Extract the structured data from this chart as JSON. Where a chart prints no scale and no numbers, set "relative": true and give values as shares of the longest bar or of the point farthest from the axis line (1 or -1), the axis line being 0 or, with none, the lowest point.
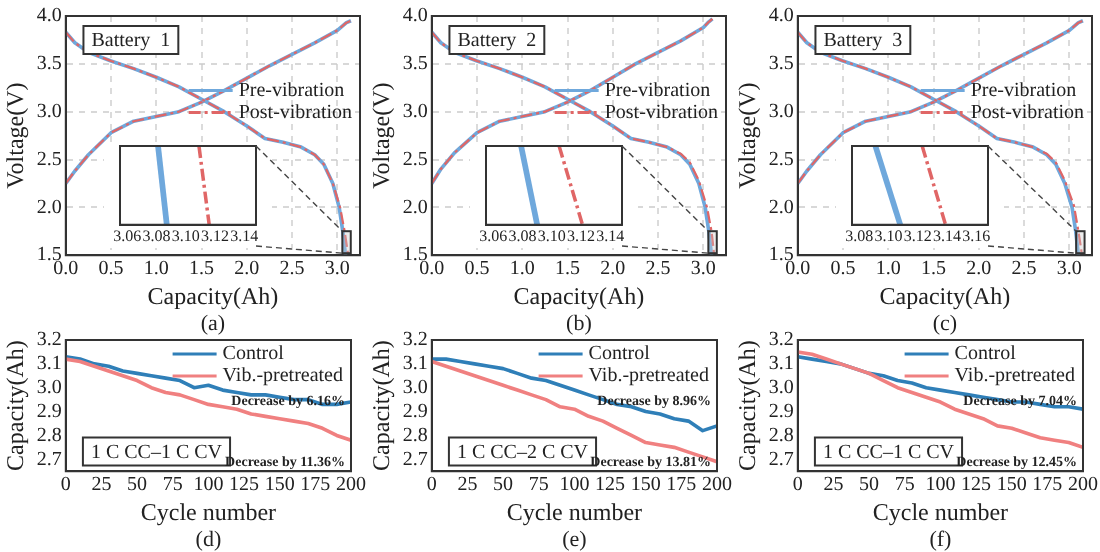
{
  "chart_data": [
    {
      "type": "line",
      "xlabel": "Capacity(Ah)",
      "ylabel": "Voltage(V)",
      "annotations": [
        "Battery  1",
        "(a)"
      ],
      "grid": true,
      "legend": "right",
      "marker": "none",
      "xlim": [
        0,
        3.25
      ],
      "xticks": [
        {
          "value": 0,
          "label": "0.0"
        },
        0.5,
        {
          "value": 1,
          "label": "1.0"
        },
        1.5,
        {
          "value": 2,
          "label": "2.0"
        },
        2.5,
        {
          "value": 3,
          "label": "3.0"
        }
      ],
      "ylim": [
        1.5,
        4
      ],
      "yticks": [
        1.5,
        {
          "value": 2,
          "label": "2.0"
        },
        2.5,
        {
          "value": 3,
          "label": "3.0"
        },
        3.5,
        {
          "value": 4,
          "label": "4.0"
        }
      ],
      "series": [
        {
          "name": "Pre-vibration",
          "color": "#6fa8dc",
          "x": [
            0,
            0.1,
            0.25,
            0.5,
            0.75,
            1,
            1.25,
            1.5,
            1.75,
            2,
            2.25,
            2.5,
            2.75,
            3,
            3.1,
            3.15
          ],
          "values": [
            2.25,
            2.38,
            2.55,
            2.78,
            2.9,
            2.95,
            3,
            3.1,
            3.22,
            3.35,
            3.48,
            3.6,
            3.72,
            3.85,
            3.93,
            3.95
          ]
        },
        {
          "name": "Post-vibration",
          "color": "#e06666",
          "line_style": "dashed",
          "x": [
            0,
            0.1,
            0.25,
            0.5,
            0.75,
            1,
            1.25,
            1.5,
            1.75,
            2,
            2.25,
            2.5,
            2.75,
            3,
            3.1,
            3.15
          ],
          "values": [
            2.25,
            2.38,
            2.55,
            2.78,
            2.9,
            2.95,
            3,
            3.1,
            3.22,
            3.35,
            3.48,
            3.6,
            3.72,
            3.85,
            3.93,
            3.95
          ]
        },
        {
          "color": "#6fa8dc",
          "x": [
            0,
            0.1,
            0.25,
            0.5,
            0.75,
            1,
            1.25,
            1.5,
            1.75,
            2,
            2.2,
            2.4,
            2.6,
            2.75,
            2.85,
            2.95,
            3.02,
            3.06,
            3.09
          ],
          "values": [
            3.83,
            3.72,
            3.62,
            3.53,
            3.45,
            3.36,
            3.26,
            3.13,
            3,
            2.85,
            2.72,
            2.68,
            2.63,
            2.55,
            2.45,
            2.25,
            2,
            1.75,
            1.5
          ]
        },
        {
          "color": "#e06666",
          "line_style": "dashed",
          "x": [
            0,
            0.1,
            0.25,
            0.5,
            0.75,
            1,
            1.25,
            1.5,
            1.75,
            2,
            2.2,
            2.4,
            2.6,
            2.75,
            2.85,
            2.95,
            3.03,
            3.08,
            3.12
          ],
          "values": [
            3.83,
            3.72,
            3.62,
            3.53,
            3.45,
            3.36,
            3.26,
            3.13,
            3,
            2.85,
            2.72,
            2.68,
            2.63,
            2.55,
            2.45,
            2.25,
            2,
            1.75,
            1.5
          ]
        }
      ]
    },
    {
      "type": "line",
      "relative": true,
      "marker": "none",
      "xlim": [
        3.055,
        3.148
      ],
      "xticks": [
        3.06,
        3.08,
        {
          "value": 3.1,
          "label": "3.10"
        },
        3.12,
        3.14
      ],
      "series": [
        {
          "color": "#6fa8dc",
          "x": [
            3.081,
            3.087
          ],
          "values": [
            1,
            0
          ]
        },
        {
          "color": "#e06666",
          "line_style": "dashed",
          "x": [
            3.109,
            3.116
          ],
          "values": [
            1,
            0
          ]
        }
      ]
    },
    {
      "type": "line",
      "xlabel": "Capacity(Ah)",
      "ylabel": "Voltage(V)",
      "annotations": [
        "Battery  2",
        "(b)"
      ],
      "grid": true,
      "legend": "right",
      "marker": "none",
      "xlim": [
        0,
        3.25
      ],
      "xticks": [
        {
          "value": 0,
          "label": "0.0"
        },
        0.5,
        {
          "value": 1,
          "label": "1.0"
        },
        1.5,
        {
          "value": 2,
          "label": "2.0"
        },
        2.5,
        {
          "value": 3,
          "label": "3.0"
        }
      ],
      "ylim": [
        1.5,
        4
      ],
      "yticks": [
        1.5,
        {
          "value": 2,
          "label": "2.0"
        },
        2.5,
        {
          "value": 3,
          "label": "3.0"
        },
        3.5,
        {
          "value": 4,
          "label": "4.0"
        }
      ],
      "series": [
        {
          "name": "Pre-vibration",
          "color": "#6fa8dc",
          "x": [
            0,
            0.1,
            0.25,
            0.5,
            0.75,
            1,
            1.25,
            1.5,
            1.75,
            2,
            2.25,
            2.5,
            2.75,
            3,
            3.05,
            3.1
          ],
          "values": [
            2.25,
            2.4,
            2.57,
            2.78,
            2.9,
            2.95,
            3,
            3.1,
            3.22,
            3.36,
            3.5,
            3.62,
            3.74,
            3.88,
            3.93,
            3.97
          ]
        },
        {
          "name": "Post-vibration",
          "color": "#e06666",
          "line_style": "dashed",
          "x": [
            0,
            0.1,
            0.25,
            0.5,
            0.75,
            1,
            1.25,
            1.5,
            1.75,
            2,
            2.25,
            2.5,
            2.75,
            3,
            3.05,
            3.1
          ],
          "values": [
            2.25,
            2.4,
            2.57,
            2.78,
            2.9,
            2.95,
            3,
            3.1,
            3.22,
            3.36,
            3.5,
            3.62,
            3.74,
            3.88,
            3.93,
            3.97
          ]
        },
        {
          "color": "#6fa8dc",
          "x": [
            0,
            0.1,
            0.25,
            0.5,
            0.75,
            1,
            1.25,
            1.5,
            1.75,
            2,
            2.2,
            2.4,
            2.6,
            2.75,
            2.85,
            2.95,
            3.02,
            3.06,
            3.09
          ],
          "values": [
            3.83,
            3.72,
            3.62,
            3.53,
            3.45,
            3.36,
            3.26,
            3.13,
            3,
            2.85,
            2.72,
            2.68,
            2.63,
            2.55,
            2.45,
            2.25,
            2,
            1.75,
            1.5
          ]
        },
        {
          "color": "#e06666",
          "line_style": "dashed",
          "x": [
            0,
            0.1,
            0.25,
            0.5,
            0.75,
            1,
            1.25,
            1.5,
            1.75,
            2,
            2.2,
            2.4,
            2.6,
            2.75,
            2.85,
            2.95,
            3.04,
            3.09,
            3.12
          ],
          "values": [
            3.83,
            3.72,
            3.62,
            3.53,
            3.45,
            3.36,
            3.26,
            3.13,
            3,
            2.85,
            2.72,
            2.68,
            2.63,
            2.56,
            2.47,
            2.28,
            2,
            1.75,
            1.5
          ]
        }
      ]
    },
    {
      "type": "line",
      "relative": true,
      "marker": "none",
      "xlim": [
        3.055,
        3.148
      ],
      "xticks": [
        3.06,
        3.08,
        {
          "value": 3.1,
          "label": "3.10"
        },
        3.12,
        3.14
      ],
      "series": [
        {
          "color": "#6fa8dc",
          "x": [
            3.079,
            3.09
          ],
          "values": [
            1,
            0
          ]
        },
        {
          "color": "#e06666",
          "line_style": "dashed",
          "x": [
            3.105,
            3.121
          ],
          "values": [
            1,
            0
          ]
        }
      ]
    },
    {
      "type": "line",
      "xlabel": "Capacity(Ah)",
      "ylabel": "Voltage(V)",
      "annotations": [
        "Battery  3",
        "(c)"
      ],
      "grid": true,
      "legend": "right",
      "marker": "none",
      "xlim": [
        0,
        3.25
      ],
      "xticks": [
        {
          "value": 0,
          "label": "0.0"
        },
        0.5,
        {
          "value": 1,
          "label": "1.0"
        },
        1.5,
        {
          "value": 2,
          "label": "2.0"
        },
        2.5,
        {
          "value": 3,
          "label": "3.0"
        }
      ],
      "ylim": [
        1.5,
        4
      ],
      "yticks": [
        1.5,
        {
          "value": 2,
          "label": "2.0"
        },
        2.5,
        {
          "value": 3,
          "label": "3.0"
        },
        3.5,
        {
          "value": 4,
          "label": "4.0"
        }
      ],
      "series": [
        {
          "name": "Pre-vibration",
          "color": "#6fa8dc",
          "x": [
            0,
            0.1,
            0.25,
            0.5,
            0.75,
            1,
            1.25,
            1.5,
            1.75,
            2,
            2.25,
            2.5,
            2.75,
            3,
            3.1,
            3.15
          ],
          "values": [
            2.25,
            2.38,
            2.55,
            2.78,
            2.9,
            2.95,
            3,
            3.1,
            3.22,
            3.35,
            3.48,
            3.6,
            3.72,
            3.85,
            3.93,
            3.95
          ]
        },
        {
          "name": "Post-vibration",
          "color": "#e06666",
          "line_style": "dashed",
          "x": [
            0,
            0.1,
            0.25,
            0.5,
            0.75,
            1,
            1.25,
            1.5,
            1.75,
            2,
            2.25,
            2.5,
            2.75,
            3,
            3.1,
            3.15
          ],
          "values": [
            2.25,
            2.38,
            2.55,
            2.78,
            2.9,
            2.95,
            3,
            3.1,
            3.22,
            3.35,
            3.48,
            3.6,
            3.72,
            3.85,
            3.93,
            3.95
          ]
        },
        {
          "color": "#6fa8dc",
          "x": [
            0,
            0.1,
            0.25,
            0.5,
            0.75,
            1,
            1.25,
            1.5,
            1.75,
            2,
            2.2,
            2.4,
            2.6,
            2.75,
            2.85,
            2.95,
            3.03,
            3.07,
            3.1
          ],
          "values": [
            3.83,
            3.72,
            3.62,
            3.53,
            3.45,
            3.36,
            3.26,
            3.13,
            3,
            2.85,
            2.72,
            2.68,
            2.63,
            2.55,
            2.45,
            2.25,
            2,
            1.75,
            1.5
          ]
        },
        {
          "color": "#e06666",
          "line_style": "dashed",
          "x": [
            0,
            0.1,
            0.25,
            0.5,
            0.75,
            1,
            1.25,
            1.5,
            1.75,
            2,
            2.2,
            2.4,
            2.6,
            2.75,
            2.85,
            2.95,
            3.05,
            3.1,
            3.14
          ],
          "values": [
            3.83,
            3.72,
            3.62,
            3.53,
            3.45,
            3.36,
            3.26,
            3.13,
            3,
            2.85,
            2.72,
            2.68,
            2.63,
            2.56,
            2.47,
            2.28,
            2.02,
            1.75,
            1.5
          ]
        }
      ]
    },
    {
      "type": "line",
      "relative": true,
      "marker": "none",
      "xlim": [
        3.075,
        3.168
      ],
      "xticks": [
        3.08,
        {
          "value": 3.1,
          "label": "3.10"
        },
        3.12,
        3.14,
        3.16
      ],
      "series": [
        {
          "color": "#6fa8dc",
          "x": [
            3.091,
            3.108
          ],
          "values": [
            1,
            0
          ]
        },
        {
          "color": "#e06666",
          "line_style": "dashed",
          "x": [
            3.123,
            3.139
          ],
          "values": [
            1,
            0
          ]
        }
      ]
    },
    {
      "type": "line",
      "xlabel": "Cycle number",
      "ylabel": "Capacity(Ah)",
      "annotations": [
        "1 C CC–1 C CV",
        "Decrease by 6.16%",
        "Decrease by 11.36%",
        "(d)"
      ],
      "legend": "top right",
      "marker": "none",
      "xlim": [
        0,
        200
      ],
      "xticks": [
        0,
        25,
        50,
        75,
        100,
        125,
        150,
        175,
        200
      ],
      "ylim": [
        2.65,
        3.2
      ],
      "yticks": [
        2.7,
        2.8,
        2.9,
        {
          "value": 3,
          "label": "3.0"
        },
        3.1,
        3.2
      ],
      "x": [
        0,
        10,
        20,
        30,
        40,
        50,
        60,
        70,
        80,
        90,
        100,
        110,
        120,
        130,
        140,
        150,
        160,
        170,
        180,
        190,
        200
      ],
      "series": [
        {
          "name": "Control",
          "color": "#2f7fb8",
          "values": [
            3.13,
            3.12,
            3.1,
            3.09,
            3.07,
            3.06,
            3.05,
            3.04,
            3.03,
            3,
            3.01,
            2.99,
            2.98,
            2.97,
            2.97,
            2.96,
            2.95,
            2.95,
            2.93,
            2.93,
            2.94
          ]
        },
        {
          "name": "Vib.-pretreated",
          "color": "#f08080",
          "values": [
            3.12,
            3.11,
            3.09,
            3.07,
            3.05,
            3.03,
            3,
            2.98,
            2.97,
            2.95,
            2.93,
            2.92,
            2.91,
            2.89,
            2.88,
            2.87,
            2.86,
            2.85,
            2.83,
            2.8,
            2.78
          ]
        }
      ]
    },
    {
      "type": "line",
      "xlabel": "Cycle number",
      "ylabel": "Capacity(Ah)",
      "annotations": [
        "1 C CC–2 C CV",
        "Decrease by 8.96%",
        "Decrease by 13.81%",
        "(e)"
      ],
      "legend": "top right",
      "marker": "none",
      "xlim": [
        0,
        200
      ],
      "xticks": [
        0,
        25,
        50,
        75,
        100,
        125,
        150,
        175,
        200
      ],
      "ylim": [
        2.65,
        3.2
      ],
      "yticks": [
        2.7,
        2.8,
        2.9,
        {
          "value": 3,
          "label": "3.0"
        },
        3.1,
        3.2
      ],
      "x": [
        0,
        10,
        20,
        30,
        40,
        50,
        60,
        70,
        80,
        90,
        100,
        110,
        120,
        130,
        140,
        150,
        160,
        170,
        180,
        190,
        200
      ],
      "series": [
        {
          "name": "Control",
          "color": "#2f7fb8",
          "values": [
            3.12,
            3.12,
            3.11,
            3.1,
            3.09,
            3.08,
            3.06,
            3.04,
            3.03,
            3.01,
            2.99,
            2.97,
            2.95,
            2.93,
            2.92,
            2.9,
            2.89,
            2.87,
            2.86,
            2.82,
            2.84
          ]
        },
        {
          "name": "Vib.-pretreated",
          "color": "#f08080",
          "values": [
            3.11,
            3.09,
            3.07,
            3.05,
            3.03,
            3.01,
            2.99,
            2.97,
            2.95,
            2.92,
            2.91,
            2.88,
            2.86,
            2.83,
            2.8,
            2.77,
            2.76,
            2.75,
            2.73,
            2.71,
            2.69
          ]
        }
      ]
    },
    {
      "type": "line",
      "xlabel": "Cycle number",
      "ylabel": "Capacity(Ah)",
      "annotations": [
        "1 C CC–1 C CV",
        "Decrease by 7.04%",
        "Decrease by 12.45%",
        "(f)"
      ],
      "legend": "top right",
      "marker": "none",
      "xlim": [
        0,
        200
      ],
      "xticks": [
        0,
        25,
        50,
        75,
        100,
        125,
        150,
        175,
        200
      ],
      "ylim": [
        2.65,
        3.2
      ],
      "yticks": [
        2.7,
        2.8,
        2.9,
        {
          "value": 3,
          "label": "3.0"
        },
        3.1,
        3.2
      ],
      "x": [
        0,
        10,
        20,
        30,
        40,
        50,
        60,
        70,
        80,
        90,
        100,
        110,
        120,
        130,
        140,
        150,
        160,
        170,
        180,
        190,
        200
      ],
      "series": [
        {
          "name": "Control",
          "color": "#2f7fb8",
          "values": [
            3.13,
            3.12,
            3.11,
            3.1,
            3.08,
            3.06,
            3.05,
            3.03,
            3.02,
            3,
            2.99,
            2.98,
            2.97,
            2.96,
            2.95,
            2.94,
            2.94,
            2.93,
            2.92,
            2.92,
            2.91
          ]
        },
        {
          "name": "Vib.-pretreated",
          "color": "#f08080",
          "values": [
            3.15,
            3.14,
            3.12,
            3.1,
            3.08,
            3.06,
            3.03,
            3,
            2.98,
            2.96,
            2.94,
            2.91,
            2.89,
            2.87,
            2.84,
            2.83,
            2.81,
            2.79,
            2.78,
            2.77,
            2.75
          ]
        }
      ]
    }
  ]
}
